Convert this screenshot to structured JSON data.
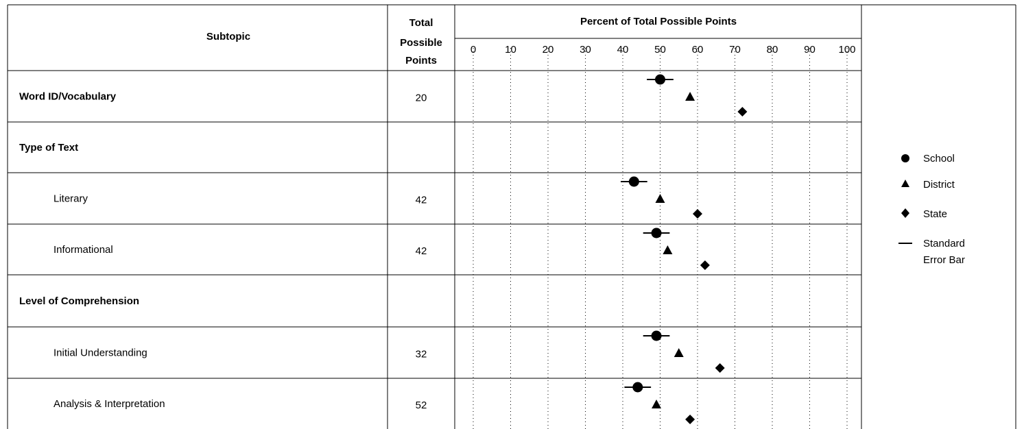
{
  "table": {
    "subtopic_header": "Subtopic",
    "points_header_lines": [
      "Total",
      "Possible",
      "Points"
    ],
    "percent_header": "Percent of Total Possible Points"
  },
  "legend": {
    "school": "School",
    "district": "District",
    "state": "State",
    "error_bar_lines": [
      "Standard",
      "Error Bar"
    ]
  },
  "chart_data": {
    "type": "scatter",
    "title": "Percent of Total Possible Points",
    "xlim": [
      0,
      100
    ],
    "x_ticks": [
      0,
      10,
      20,
      30,
      40,
      50,
      60,
      70,
      80,
      90,
      100
    ],
    "grid": "vertical dotted",
    "legend_position": "right",
    "rows": [
      {
        "label": "Word ID/Vocabulary",
        "bold": true,
        "indent": false,
        "points": "20",
        "school": 50,
        "school_err": 3,
        "district": 58,
        "state": 72
      },
      {
        "label": "Type of Text",
        "bold": true,
        "indent": false,
        "points": "",
        "school": null,
        "school_err": null,
        "district": null,
        "state": null
      },
      {
        "label": "Literary",
        "bold": false,
        "indent": true,
        "points": "42",
        "school": 43,
        "school_err": 3,
        "district": 50,
        "state": 60
      },
      {
        "label": "Informational",
        "bold": false,
        "indent": true,
        "points": "42",
        "school": 49,
        "school_err": 3,
        "district": 52,
        "state": 62
      },
      {
        "label": "Level of Comprehension",
        "bold": true,
        "indent": false,
        "points": "",
        "school": null,
        "school_err": null,
        "district": null,
        "state": null
      },
      {
        "label": "Initial Understanding",
        "bold": false,
        "indent": true,
        "points": "32",
        "school": 49,
        "school_err": 3,
        "district": 55,
        "state": 66
      },
      {
        "label": "Analysis & Interpretation",
        "bold": false,
        "indent": true,
        "points": "52",
        "school": 44,
        "school_err": 3,
        "district": 49,
        "state": 58
      }
    ],
    "series": [
      {
        "name": "School",
        "marker": "circle"
      },
      {
        "name": "District",
        "marker": "triangle"
      },
      {
        "name": "State",
        "marker": "diamond"
      }
    ]
  }
}
